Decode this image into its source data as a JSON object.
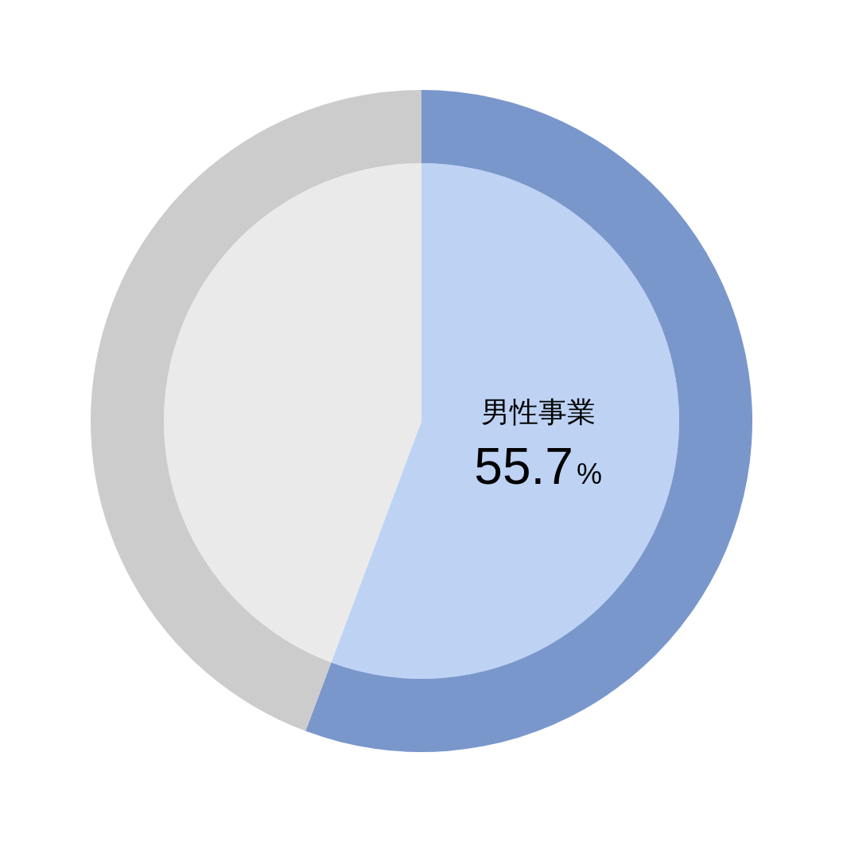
{
  "chart_data": {
    "type": "pie",
    "categories": [
      "男性事業",
      null
    ],
    "value_labels": [
      "55.7%",
      null
    ],
    "series": [
      {
        "values": [
          55.7,
          44.3
        ],
        "colors": [
          "#bed3f4",
          "#eaeaea"
        ]
      },
      {
        "values": [
          55.7,
          44.3
        ],
        "colors": [
          "#7a97cc",
          "#cccccc"
        ]
      }
    ],
    "legend": false
  }
}
